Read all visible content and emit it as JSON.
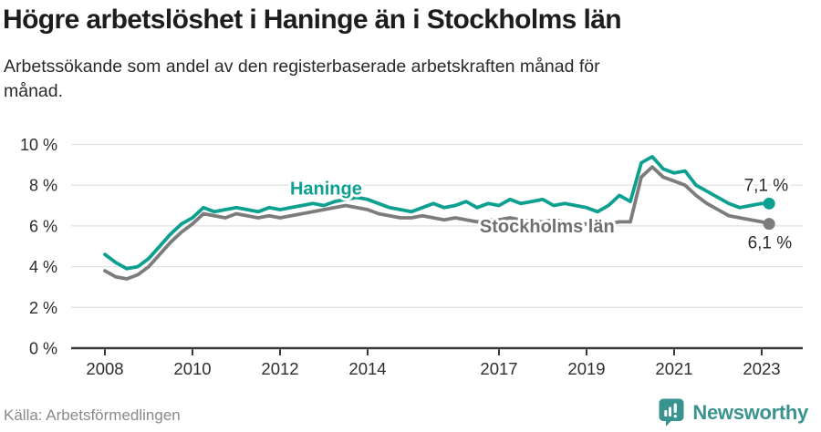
{
  "colors": {
    "accent": "#0da091",
    "gray_line": "#7c7c7c",
    "grid": "#e2e2e2",
    "axis": "#3a3a3a",
    "tick_text": "#2d2d2d",
    "value_label": "#2b2b2b",
    "muted": "#8a8a8a",
    "brand": "#39938e"
  },
  "chart_data": {
    "type": "line",
    "title": "Högre arbetslöshet i Haninge än i Stockholms län",
    "subtitle": "Arbetssökande som andel av den registerbaserade arbetskraften månad för månad.",
    "y_unit": "%",
    "xlim": [
      2007.23,
      2023.94
    ],
    "ylim": [
      0,
      10
    ],
    "grid": "horizontal",
    "x_ticks": [
      2008,
      2010,
      2012,
      2014,
      2017,
      2019,
      2021,
      2023
    ],
    "y_ticks": [
      {
        "v": 0,
        "label": "0 %"
      },
      {
        "v": 2,
        "label": "2 %"
      },
      {
        "v": 4,
        "label": "4 %"
      },
      {
        "v": 6,
        "label": "6 %"
      },
      {
        "v": 8,
        "label": "8 %"
      },
      {
        "v": 10,
        "label": "10 %"
      }
    ],
    "x": [
      2008,
      2008.25,
      2008.5,
      2008.75,
      2009,
      2009.25,
      2009.5,
      2009.75,
      2010,
      2010.25,
      2010.5,
      2010.75,
      2011,
      2011.25,
      2011.5,
      2011.75,
      2012,
      2012.25,
      2012.5,
      2012.75,
      2013,
      2013.25,
      2013.5,
      2013.75,
      2014,
      2014.25,
      2014.5,
      2014.75,
      2015,
      2015.25,
      2015.5,
      2015.75,
      2016,
      2016.25,
      2016.5,
      2016.75,
      2017,
      2017.25,
      2017.5,
      2017.75,
      2018,
      2018.25,
      2018.5,
      2018.75,
      2019,
      2019.25,
      2019.5,
      2019.75,
      2020,
      2020.25,
      2020.5,
      2020.75,
      2021,
      2021.25,
      2021.5,
      2021.75,
      2022,
      2022.25,
      2022.5,
      2022.75,
      2023,
      2023.17
    ],
    "series": [
      {
        "name": "Stockholms län",
        "color": "#7c7c7c",
        "label": {
          "text": "Stockholms län",
          "x": 2018.1,
          "v": 6.0,
          "color": "#6f6f6f"
        },
        "end_label": {
          "text": "6,1 %",
          "position": "below"
        },
        "end_value": 6.1,
        "values": [
          3.8,
          3.5,
          3.4,
          3.6,
          4.0,
          4.6,
          5.2,
          5.7,
          6.1,
          6.6,
          6.5,
          6.4,
          6.6,
          6.5,
          6.4,
          6.5,
          6.4,
          6.5,
          6.6,
          6.7,
          6.8,
          6.9,
          7.0,
          6.9,
          6.8,
          6.6,
          6.5,
          6.4,
          6.4,
          6.5,
          6.4,
          6.3,
          6.4,
          6.3,
          6.2,
          6.3,
          6.3,
          6.4,
          6.3,
          6.2,
          6.2,
          6.3,
          6.2,
          6.1,
          6.1,
          6.2,
          6.1,
          6.2,
          6.2,
          8.4,
          8.9,
          8.4,
          8.2,
          8.0,
          7.5,
          7.1,
          6.8,
          6.5,
          6.4,
          6.3,
          6.2,
          6.1
        ]
      },
      {
        "name": "Haninge",
        "color": "#0da091",
        "label": {
          "text": "Haninge",
          "x": 2013.05,
          "v": 7.85,
          "color": "#0da091"
        },
        "end_label": {
          "text": "7,1 %",
          "position": "above"
        },
        "end_value": 7.1,
        "values": [
          4.6,
          4.2,
          3.9,
          4.0,
          4.4,
          5.0,
          5.6,
          6.1,
          6.4,
          6.9,
          6.7,
          6.8,
          6.9,
          6.8,
          6.7,
          6.9,
          6.8,
          6.9,
          7.0,
          7.1,
          7.0,
          7.2,
          7.3,
          7.4,
          7.3,
          7.1,
          6.9,
          6.8,
          6.7,
          6.9,
          7.1,
          6.9,
          7.0,
          7.2,
          6.9,
          7.1,
          7.0,
          7.3,
          7.1,
          7.2,
          7.3,
          7.0,
          7.1,
          7.0,
          6.9,
          6.7,
          7.0,
          7.5,
          7.2,
          9.1,
          9.4,
          8.8,
          8.6,
          8.7,
          8.0,
          7.7,
          7.4,
          7.1,
          6.9,
          7.0,
          7.1,
          7.1
        ]
      }
    ]
  },
  "footer": {
    "source": "Källa: Arbetsförmedlingen",
    "brand": "Newsworthy"
  }
}
